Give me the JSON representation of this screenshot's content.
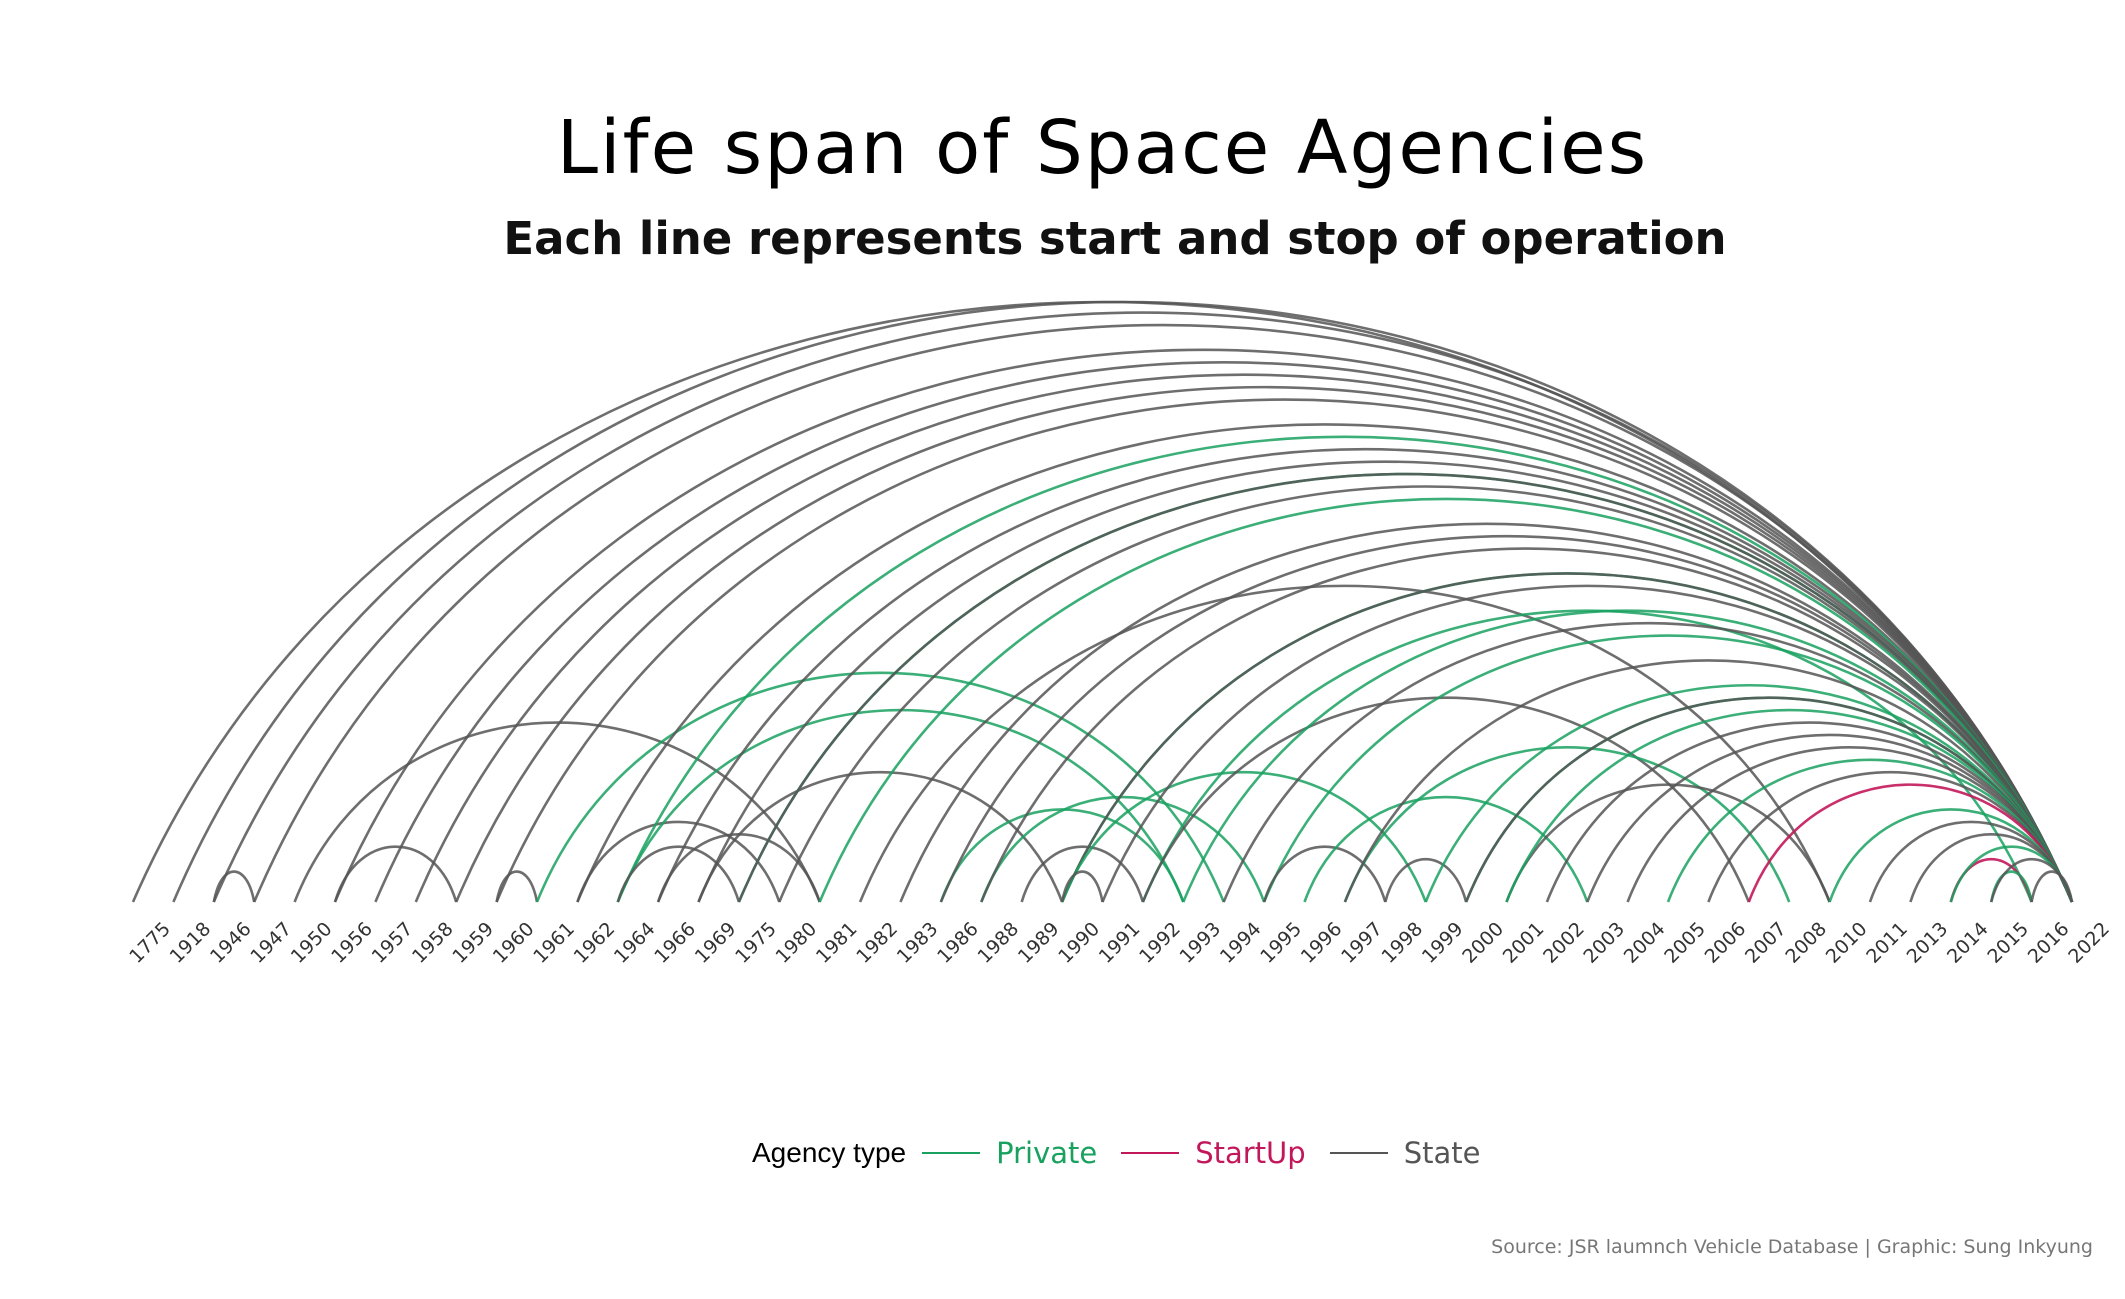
{
  "chart_data": {
    "type": "arc",
    "title": "Life span of Space Agencies",
    "subtitle": "Each line represents start and stop of operation",
    "categories": [
      "1775",
      "1918",
      "1946",
      "1947",
      "1950",
      "1956",
      "1957",
      "1958",
      "1959",
      "1960",
      "1961",
      "1962",
      "1964",
      "1966",
      "1969",
      "1975",
      "1980",
      "1981",
      "1982",
      "1983",
      "1986",
      "1988",
      "1989",
      "1990",
      "1991",
      "1992",
      "1993",
      "1994",
      "1995",
      "1996",
      "1997",
      "1998",
      "1999",
      "2000",
      "2001",
      "2002",
      "2003",
      "2004",
      "2005",
      "2006",
      "2007",
      "2008",
      "2010",
      "2011",
      "2013",
      "2014",
      "2015",
      "2016",
      "2022"
    ],
    "legend": {
      "title": "Agency type",
      "placement": "bottom",
      "entries": [
        {
          "name": "Private",
          "color": "#19a15f"
        },
        {
          "name": "StartUp",
          "color": "#c2185b"
        },
        {
          "name": "State",
          "color": "#555555"
        }
      ]
    },
    "arcs": [
      {
        "type": "State",
        "start": "1775",
        "stop": "2022"
      },
      {
        "type": "State",
        "start": "1918",
        "stop": "2022"
      },
      {
        "type": "State",
        "start": "1946",
        "stop": "2022"
      },
      {
        "type": "State",
        "start": "1946",
        "stop": "1947"
      },
      {
        "type": "State",
        "start": "1947",
        "stop": "2022"
      },
      {
        "type": "State",
        "start": "1950",
        "stop": "1981"
      },
      {
        "type": "State",
        "start": "1956",
        "stop": "2022"
      },
      {
        "type": "State",
        "start": "1956",
        "stop": "1959"
      },
      {
        "type": "State",
        "start": "1957",
        "stop": "2022"
      },
      {
        "type": "State",
        "start": "1958",
        "stop": "2022"
      },
      {
        "type": "State",
        "start": "1959",
        "stop": "2022"
      },
      {
        "type": "State",
        "start": "1960",
        "stop": "2022"
      },
      {
        "type": "State",
        "start": "1960",
        "stop": "1961"
      },
      {
        "type": "Private",
        "start": "1961",
        "stop": "1994"
      },
      {
        "type": "State",
        "start": "1962",
        "stop": "2022"
      },
      {
        "type": "State",
        "start": "1962",
        "stop": "1980"
      },
      {
        "type": "Private",
        "start": "1964",
        "stop": "1993"
      },
      {
        "type": "Private",
        "start": "1964",
        "stop": "2022"
      },
      {
        "type": "State",
        "start": "1964",
        "stop": "1975"
      },
      {
        "type": "State",
        "start": "1966",
        "stop": "2022"
      },
      {
        "type": "State",
        "start": "1966",
        "stop": "1981"
      },
      {
        "type": "State",
        "start": "1969",
        "stop": "2022"
      },
      {
        "type": "State",
        "start": "1969",
        "stop": "1990"
      },
      {
        "type": "Private",
        "start": "1975",
        "stop": "2022"
      },
      {
        "type": "State",
        "start": "1975",
        "stop": "2022"
      },
      {
        "type": "State",
        "start": "1980",
        "stop": "2022"
      },
      {
        "type": "Private",
        "start": "1981",
        "stop": "2022"
      },
      {
        "type": "State",
        "start": "1982",
        "stop": "2010"
      },
      {
        "type": "State",
        "start": "1983",
        "stop": "2022"
      },
      {
        "type": "Private",
        "start": "1986",
        "stop": "1993"
      },
      {
        "type": "State",
        "start": "1986",
        "stop": "2022"
      },
      {
        "type": "Private",
        "start": "1988",
        "stop": "1995"
      },
      {
        "type": "State",
        "start": "1988",
        "stop": "2022"
      },
      {
        "type": "State",
        "start": "1989",
        "stop": "1992"
      },
      {
        "type": "Private",
        "start": "1990",
        "stop": "2022"
      },
      {
        "type": "State",
        "start": "1990",
        "stop": "2022"
      },
      {
        "type": "Private",
        "start": "1990",
        "stop": "1999"
      },
      {
        "type": "State",
        "start": "1990",
        "stop": "1991"
      },
      {
        "type": "State",
        "start": "1991",
        "stop": "2022"
      },
      {
        "type": "Private",
        "start": "1992",
        "stop": "2016"
      },
      {
        "type": "State",
        "start": "1992",
        "stop": "2007"
      },
      {
        "type": "Private",
        "start": "1993",
        "stop": "2022"
      },
      {
        "type": "State",
        "start": "1994",
        "stop": "2022"
      },
      {
        "type": "Private",
        "start": "1995",
        "stop": "2022"
      },
      {
        "type": "State",
        "start": "1995",
        "stop": "1998"
      },
      {
        "type": "Private",
        "start": "1996",
        "stop": "2003"
      },
      {
        "type": "Private",
        "start": "1997",
        "stop": "2008"
      },
      {
        "type": "State",
        "start": "1997",
        "stop": "2022"
      },
      {
        "type": "State",
        "start": "1998",
        "stop": "2000"
      },
      {
        "type": "Private",
        "start": "1999",
        "stop": "2022"
      },
      {
        "type": "Private",
        "start": "2000",
        "stop": "2022"
      },
      {
        "type": "State",
        "start": "2000",
        "stop": "2022"
      },
      {
        "type": "State",
        "start": "2001",
        "stop": "2010"
      },
      {
        "type": "Private",
        "start": "2001",
        "stop": "2022"
      },
      {
        "type": "State",
        "start": "2002",
        "stop": "2022"
      },
      {
        "type": "State",
        "start": "2003",
        "stop": "2022"
      },
      {
        "type": "State",
        "start": "2004",
        "stop": "2022"
      },
      {
        "type": "Private",
        "start": "2005",
        "stop": "2022"
      },
      {
        "type": "State",
        "start": "2006",
        "stop": "2022"
      },
      {
        "type": "StartUp",
        "start": "2007",
        "stop": "2022"
      },
      {
        "type": "Private",
        "start": "2010",
        "stop": "2022"
      },
      {
        "type": "State",
        "start": "2011",
        "stop": "2022"
      },
      {
        "type": "State",
        "start": "2013",
        "stop": "2022"
      },
      {
        "type": "StartUp",
        "start": "2014",
        "stop": "2016"
      },
      {
        "type": "Private",
        "start": "2014",
        "stop": "2022"
      },
      {
        "type": "Private",
        "start": "2015",
        "stop": "2016"
      },
      {
        "type": "State",
        "start": "2015",
        "stop": "2022"
      },
      {
        "type": "State",
        "start": "2016",
        "stop": "2022"
      }
    ]
  },
  "source": "Source: JSR laumnch Vehicle Database | Graphic: Sung Inkyung"
}
